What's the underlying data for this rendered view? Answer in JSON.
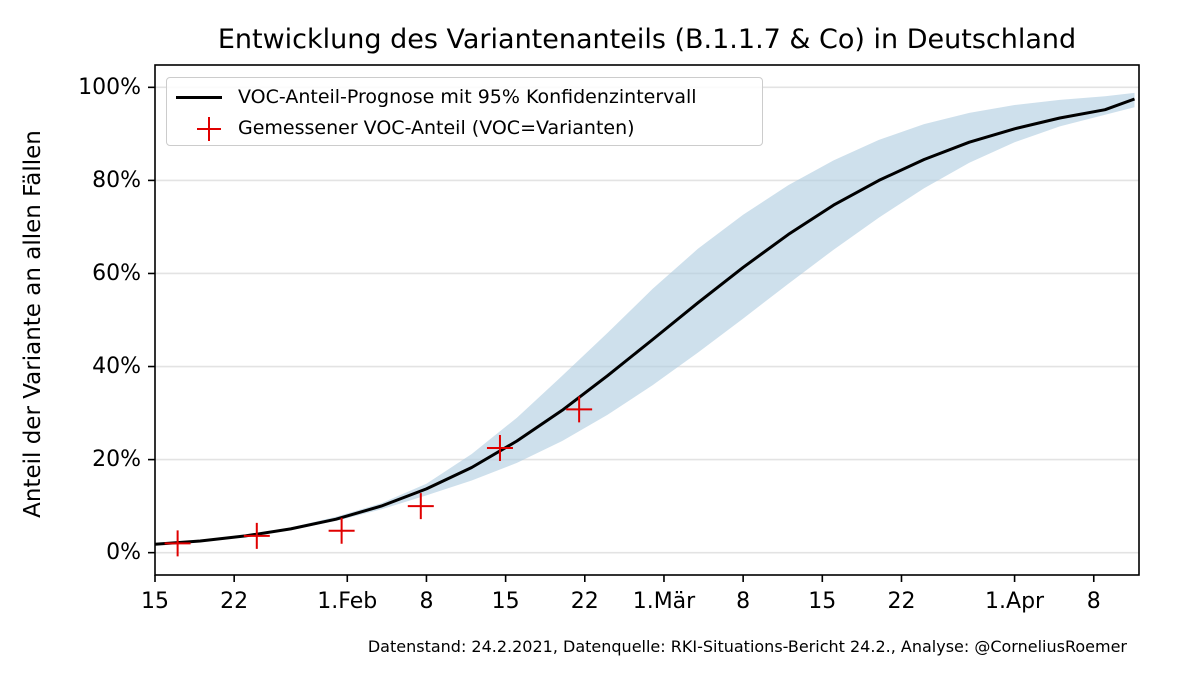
{
  "chart_data": {
    "type": "line",
    "title": "Entwicklung des Variantenanteils (B.1.1.7 & Co) in Deutschland",
    "xlabel": "",
    "ylabel": "Anteil der Variante an allen Fällen",
    "xlim": [
      0,
      87
    ],
    "ylim": [
      -0.048,
      1.048
    ],
    "x_ticks": [
      {
        "day": 0,
        "label": "15"
      },
      {
        "day": 7,
        "label": "22"
      },
      {
        "day": 17,
        "label": "1.Feb"
      },
      {
        "day": 24,
        "label": "8"
      },
      {
        "day": 31,
        "label": "15"
      },
      {
        "day": 38,
        "label": "22"
      },
      {
        "day": 45,
        "label": "1.Mär"
      },
      {
        "day": 52,
        "label": "8"
      },
      {
        "day": 59,
        "label": "15"
      },
      {
        "day": 66,
        "label": "22"
      },
      {
        "day": 76,
        "label": "1.Apr"
      },
      {
        "day": 83,
        "label": "8"
      }
    ],
    "y_ticks": [
      {
        "value": 0.0,
        "label": "0%"
      },
      {
        "value": 0.2,
        "label": "20%"
      },
      {
        "value": 0.4,
        "label": "40%"
      },
      {
        "value": 0.6,
        "label": "60%"
      },
      {
        "value": 0.8,
        "label": "80%"
      },
      {
        "value": 1.0,
        "label": "100%"
      }
    ],
    "grid": "y",
    "series": [
      {
        "name": "VOC-Anteil-Prognose mit 95% Konfidenzintervall",
        "kind": "line",
        "color": "#000000",
        "x": [
          0,
          4,
          8,
          12,
          16,
          20,
          24,
          28,
          32,
          36,
          40,
          44,
          48,
          52,
          56,
          60,
          64,
          68,
          72,
          76,
          80,
          84,
          86.6
        ],
        "y": [
          0.018,
          0.025,
          0.036,
          0.051,
          0.072,
          0.1,
          0.137,
          0.183,
          0.24,
          0.306,
          0.38,
          0.458,
          0.537,
          0.613,
          0.684,
          0.747,
          0.8,
          0.845,
          0.882,
          0.911,
          0.934,
          0.952,
          0.975
        ],
        "ci_lower": [
          0.017,
          0.024,
          0.035,
          0.049,
          0.068,
          0.093,
          0.123,
          0.155,
          0.193,
          0.24,
          0.296,
          0.36,
          0.43,
          0.503,
          0.578,
          0.651,
          0.72,
          0.783,
          0.838,
          0.882,
          0.916,
          0.941,
          0.957
        ],
        "ci_upper": [
          0.019,
          0.026,
          0.037,
          0.054,
          0.077,
          0.106,
          0.148,
          0.212,
          0.29,
          0.38,
          0.472,
          0.567,
          0.653,
          0.726,
          0.79,
          0.843,
          0.887,
          0.921,
          0.945,
          0.962,
          0.973,
          0.981,
          0.988
        ],
        "ci_color": "#aeccdf"
      },
      {
        "name": "Gemessener VOC-Anteil (VOC=Varianten)",
        "kind": "scatter",
        "marker": "+",
        "color": "#e00000",
        "x": [
          2,
          9,
          16.5,
          23.5,
          30.5,
          37.5
        ],
        "y": [
          0.02,
          0.036,
          0.047,
          0.1,
          0.225,
          0.308
        ]
      }
    ],
    "legend_position": "top-left"
  },
  "footer": "Datenstand: 24.2.2021, Datenquelle: RKI-Situations-Bericht 24.2., Analyse: @CorneliusRoemer"
}
